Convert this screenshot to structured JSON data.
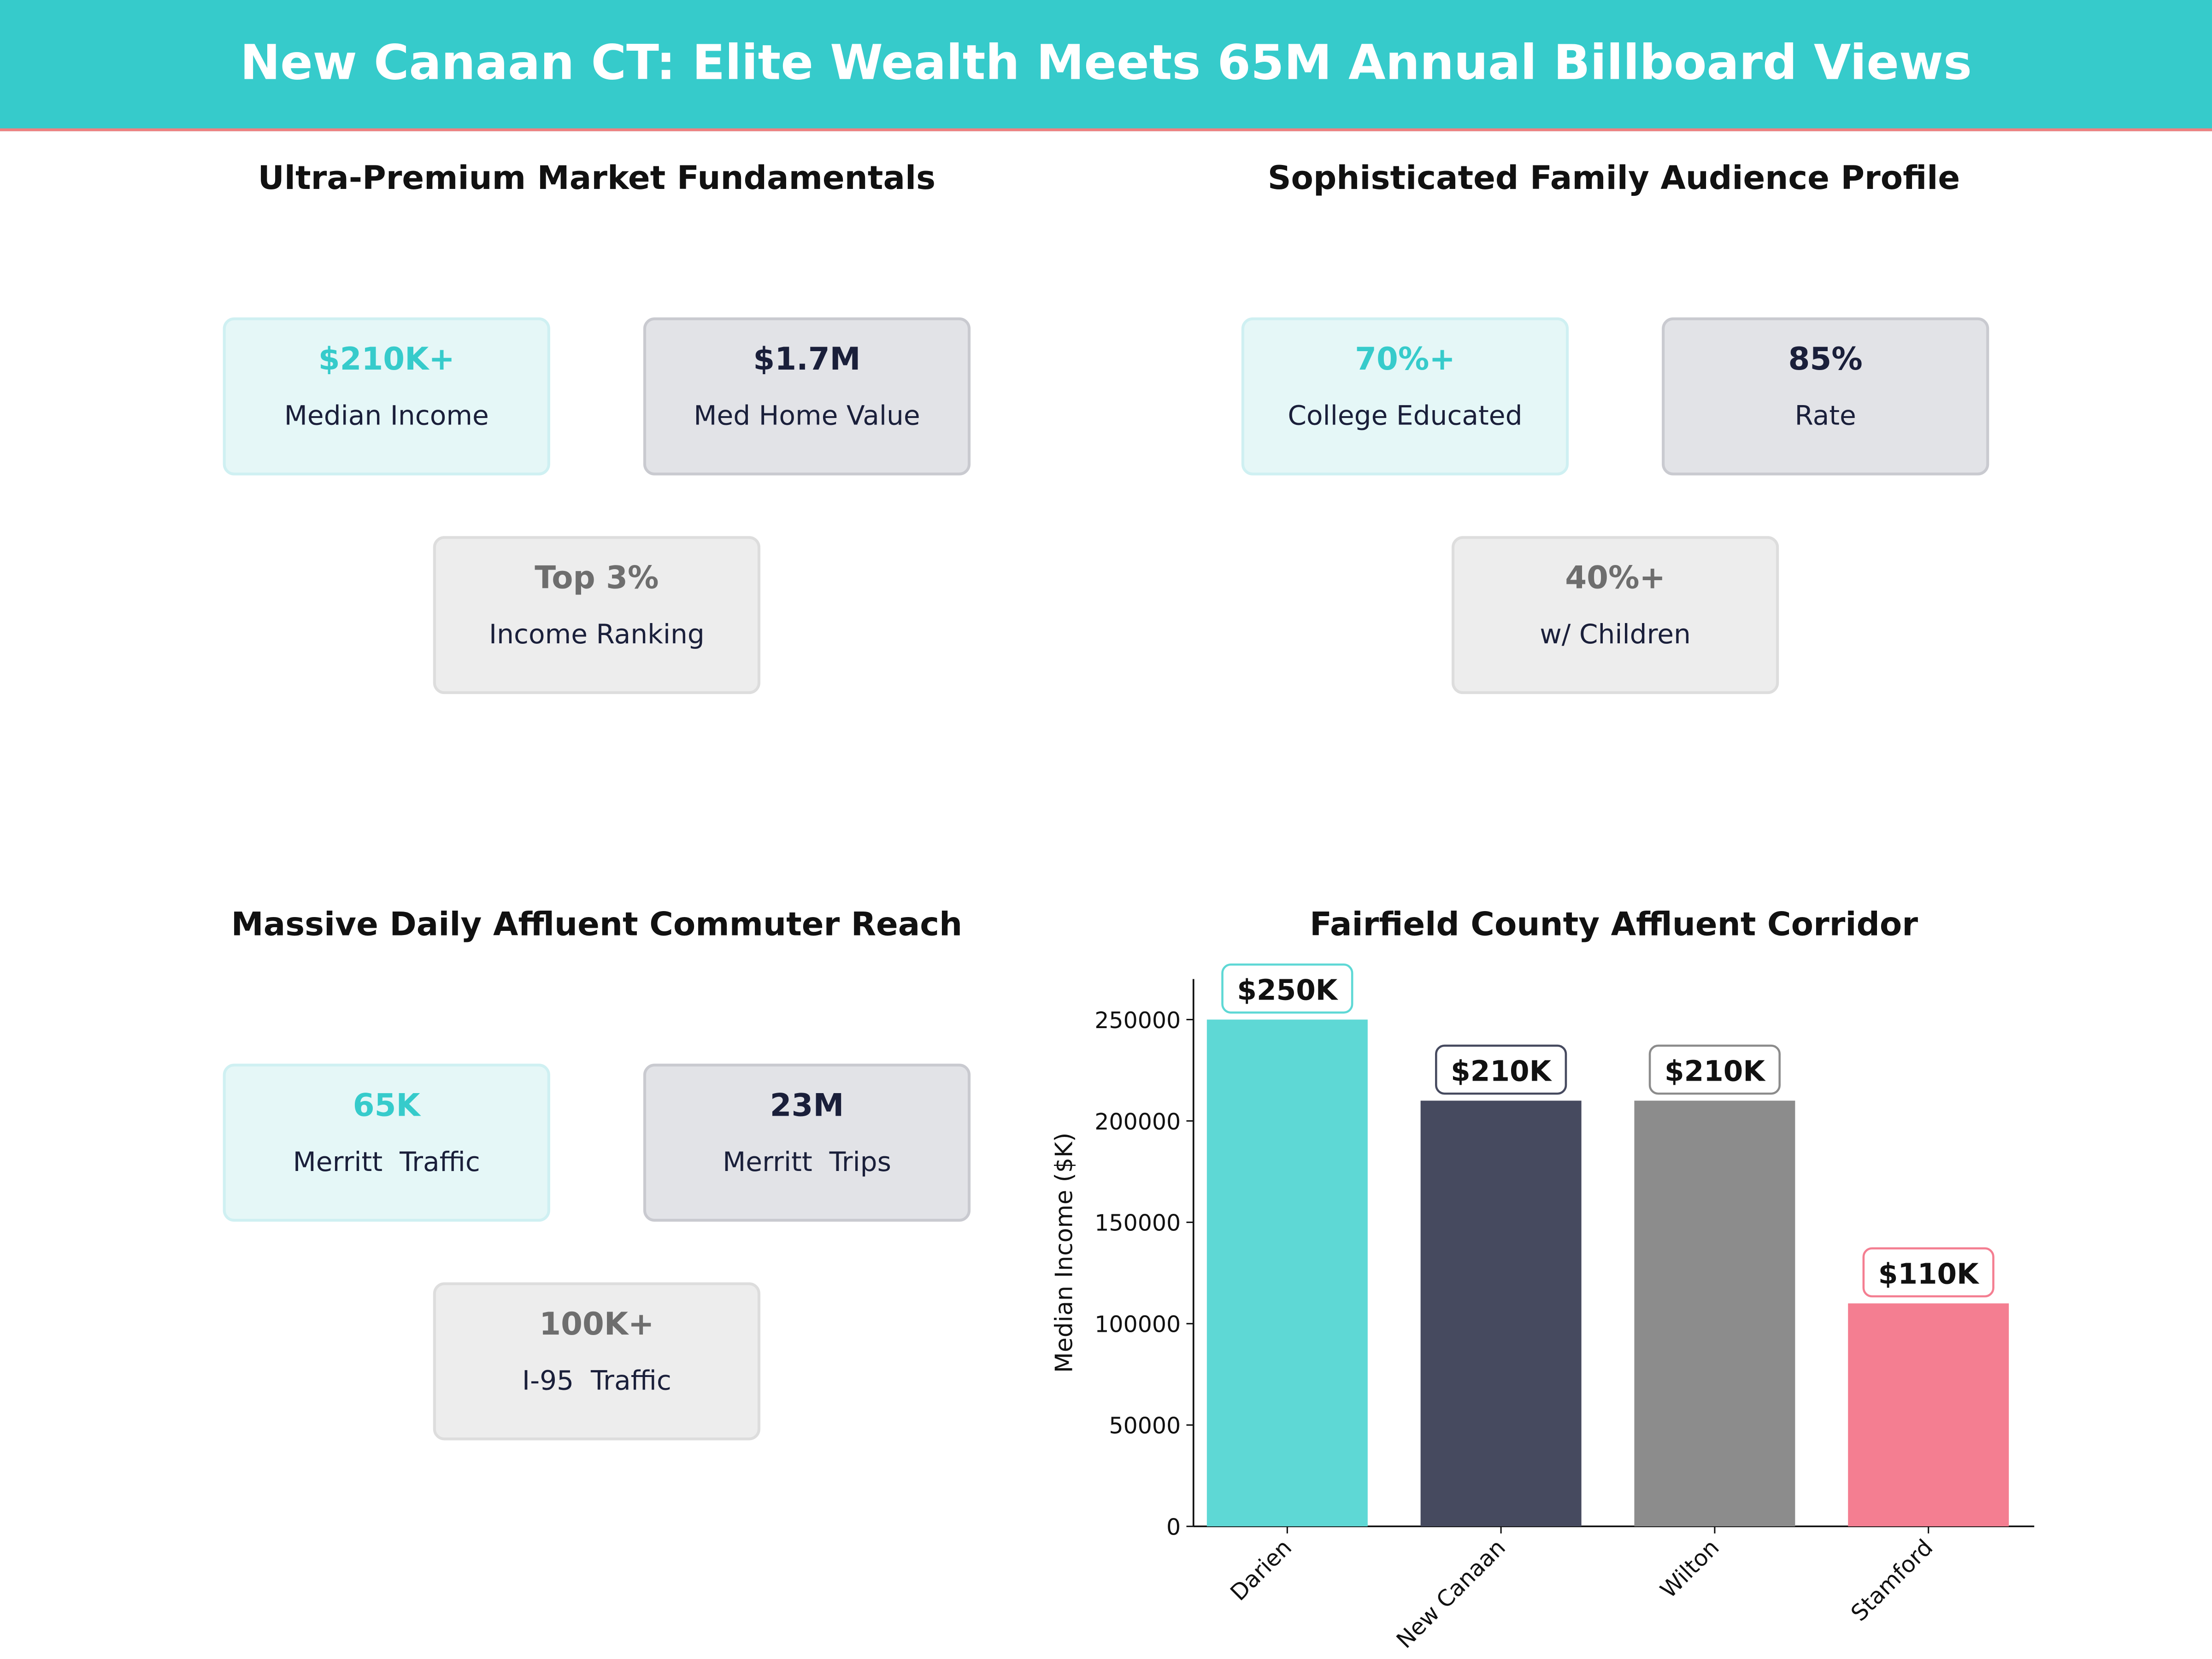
{
  "header": {
    "title": "New Canaan CT: Elite Wealth Meets 65M Annual Billboard Views"
  },
  "colors": {
    "header_bg": "#36CBCB",
    "accent_line": "#F08080",
    "teal": "#36CBCB",
    "navy": "#1A1F3A",
    "gray": "#6E6E6E"
  },
  "panels": [
    {
      "title": "Ultra-Premium Market Fundamentals",
      "cards": [
        {
          "value": "$210K+",
          "label": "Median Income"
        },
        {
          "value": "$1.7M",
          "label": "Med Home Value"
        },
        {
          "value": "Top 3%",
          "label": "Income Ranking"
        }
      ]
    },
    {
      "title": "Sophisticated Family Audience Profile",
      "cards": [
        {
          "value": "70%+",
          "label": "College Educated"
        },
        {
          "value": "85%",
          "label": "Rate"
        },
        {
          "value": "40%+",
          "label": "w/ Children"
        }
      ]
    },
    {
      "title": "Massive Daily Affluent Commuter Reach",
      "cards": [
        {
          "value": "65K",
          "label": "Merritt  Traffic"
        },
        {
          "value": "23M",
          "label": "Merritt  Trips"
        },
        {
          "value": "100K+",
          "label": "I-95  Traffic"
        }
      ]
    }
  ],
  "chart_data": {
    "type": "bar",
    "title": "Fairfield County Affluent Corridor",
    "xlabel": "",
    "ylabel": "Median Income ($K)",
    "categories": [
      "Darien",
      "New Canaan",
      "Wilton",
      "Stamford"
    ],
    "values": [
      250000,
      210000,
      210000,
      110000
    ],
    "data_labels": [
      "$250K",
      "$210K",
      "$210K",
      "$110K"
    ],
    "colors": [
      "#5ED8D5",
      "#464A5F",
      "#8C8C8C",
      "#F47E91"
    ],
    "ylim": [
      0,
      270000
    ],
    "yticks": [
      0,
      50000,
      100000,
      150000,
      200000,
      250000
    ],
    "grid": false
  }
}
